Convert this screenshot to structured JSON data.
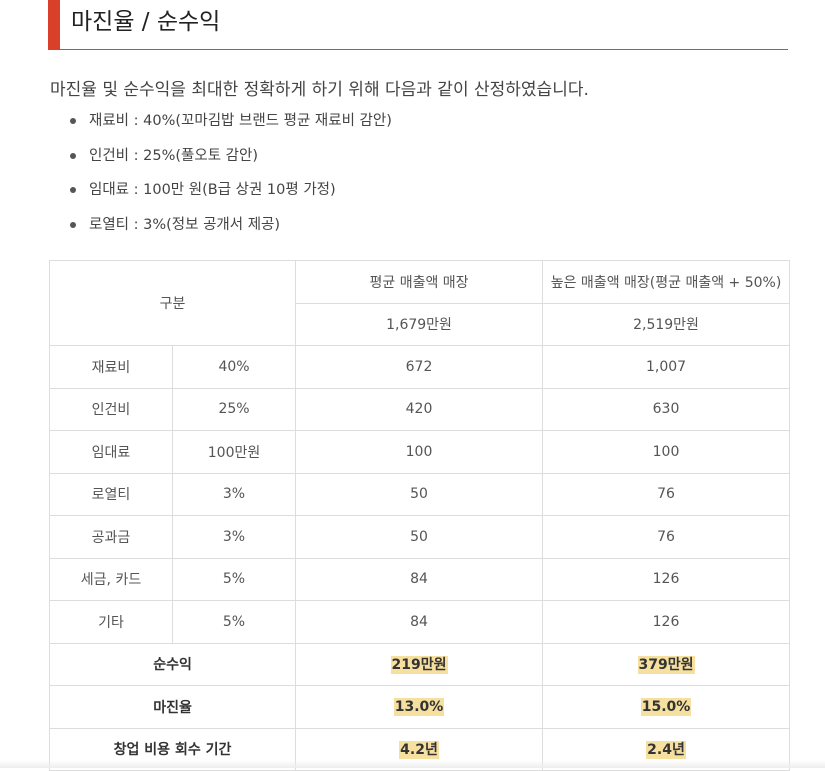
{
  "heading": "마진율 / 순수익",
  "intro": "마진율 및 순수익을 최대한 정확하게 하기 위해 다음과 같이 산정하였습니다.",
  "bullets": [
    "재료비 : 40%(꼬마김밥 브랜드 평균 재료비 감안)",
    "인건비 : 25%(풀오토 감안)",
    "임대료 : 100만 원(B급 상권 10평 가정)",
    "로열티 : 3%(정보 공개서 제공)"
  ],
  "table": {
    "header": {
      "category": "구분",
      "col1": "평균 매출액 매장",
      "col2": "높은 매출액 매장(평균 매출액 + 50%)",
      "col1_sales": "1,679만원",
      "col2_sales": "2,519만원"
    },
    "rows": [
      {
        "item": "재료비",
        "rate": "40%",
        "v1": "672",
        "v2": "1,007"
      },
      {
        "item": "인건비",
        "rate": "25%",
        "v1": "420",
        "v2": "630"
      },
      {
        "item": "임대료",
        "rate": "100만원",
        "v1": "100",
        "v2": "100"
      },
      {
        "item": "로열티",
        "rate": "3%",
        "v1": "50",
        "v2": "76"
      },
      {
        "item": "공과금",
        "rate": "3%",
        "v1": "50",
        "v2": "76"
      },
      {
        "item": "세금, 카드",
        "rate": "5%",
        "v1": "84",
        "v2": "126"
      },
      {
        "item": "기타",
        "rate": "5%",
        "v1": "84",
        "v2": "126"
      }
    ],
    "summary": [
      {
        "label": "순수익",
        "v1": "219만원",
        "v2": "379만원"
      },
      {
        "label": "마진율",
        "v1": "13.0%",
        "v2": "15.0%"
      },
      {
        "label": "창업 비용 회수 기간",
        "v1": "4.2년",
        "v2": "2.4년"
      }
    ]
  },
  "colors": {
    "accent": "#d8402a",
    "highlight": "#f5e0a0",
    "border": "#dddddd"
  }
}
